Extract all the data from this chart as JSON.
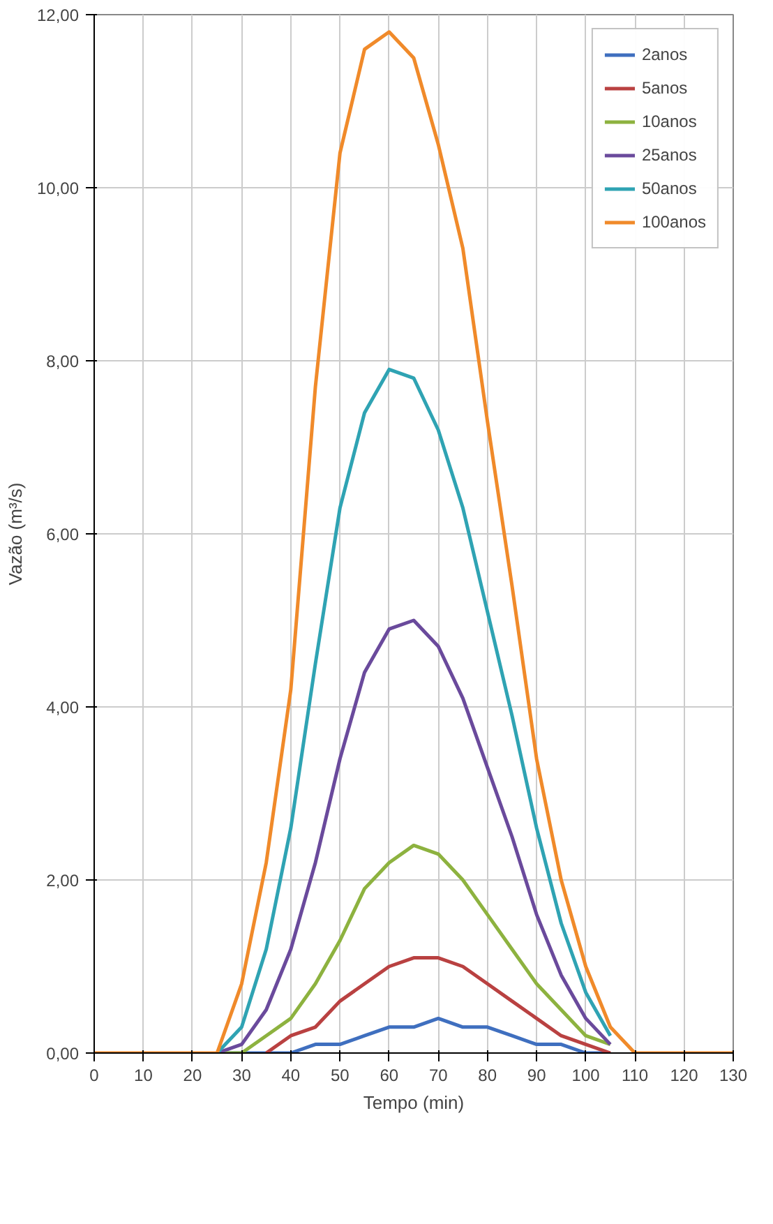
{
  "chart_data": {
    "type": "line",
    "xlabel": "Tempo (min)",
    "ylabel": "Vazão (m³/s)",
    "x": [
      0,
      10,
      20,
      25,
      30,
      35,
      40,
      45,
      50,
      55,
      60,
      65,
      70,
      75,
      80,
      85,
      90,
      95,
      100,
      105,
      110,
      120,
      130
    ],
    "series": [
      {
        "name": "2anos",
        "color": "#3f6fbf",
        "values": [
          null,
          null,
          null,
          0,
          0,
          0,
          0,
          0.1,
          0.1,
          0.2,
          0.3,
          0.3,
          0.4,
          0.3,
          0.3,
          0.2,
          0.1,
          0.1,
          0,
          0,
          null,
          null,
          null
        ]
      },
      {
        "name": "5anos",
        "color": "#b94141",
        "values": [
          null,
          null,
          null,
          null,
          null,
          0,
          0.2,
          0.3,
          0.6,
          0.8,
          1.0,
          1.1,
          1.1,
          1.0,
          0.8,
          0.6,
          0.4,
          0.2,
          0.1,
          0,
          null,
          null,
          null
        ]
      },
      {
        "name": "10anos",
        "color": "#8db23f",
        "values": [
          null,
          null,
          null,
          0,
          0,
          0.2,
          0.4,
          0.8,
          1.3,
          1.9,
          2.2,
          2.4,
          2.3,
          2.0,
          1.6,
          1.2,
          0.8,
          0.5,
          0.2,
          0.1,
          null,
          null,
          null
        ]
      },
      {
        "name": "25anos",
        "color": "#6a4a9c",
        "values": [
          null,
          null,
          null,
          0,
          0.1,
          0.5,
          1.2,
          2.2,
          3.4,
          4.4,
          4.9,
          5.0,
          4.7,
          4.1,
          3.3,
          2.5,
          1.6,
          0.9,
          0.4,
          0.1,
          null,
          null,
          null
        ]
      },
      {
        "name": "50anos",
        "color": "#2fa3b3",
        "values": [
          null,
          null,
          null,
          0,
          0.3,
          1.2,
          2.6,
          4.5,
          6.3,
          7.4,
          7.9,
          7.8,
          7.2,
          6.3,
          5.1,
          3.9,
          2.6,
          1.5,
          0.7,
          0.2,
          null,
          null,
          null
        ]
      },
      {
        "name": "100anos",
        "color": "#f08a2a",
        "values": [
          0,
          0,
          0,
          0,
          0.8,
          2.2,
          4.2,
          7.7,
          10.4,
          11.6,
          11.8,
          11.5,
          10.5,
          9.3,
          7.3,
          5.4,
          3.4,
          2.0,
          1.0,
          0.3,
          0,
          0,
          0
        ]
      }
    ],
    "xlim": [
      0,
      130
    ],
    "xticks": [
      0,
      10,
      20,
      30,
      40,
      50,
      60,
      70,
      80,
      90,
      100,
      110,
      120,
      130
    ],
    "ylim": [
      0,
      12
    ],
    "yticks": [
      {
        "value": 0,
        "label": "0,00"
      },
      {
        "value": 2,
        "label": "2,00"
      },
      {
        "value": 4,
        "label": "4,00"
      },
      {
        "value": 6,
        "label": "6,00"
      },
      {
        "value": 8,
        "label": "8,00"
      },
      {
        "value": 10,
        "label": "10,00"
      },
      {
        "value": 12,
        "label": "12,00"
      }
    ],
    "grid": true,
    "legend": "top right",
    "marker": "none",
    "line_style": "solid"
  }
}
